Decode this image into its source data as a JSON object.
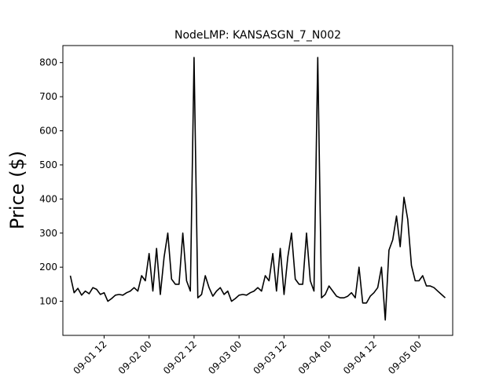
{
  "chart_data": {
    "type": "line",
    "title": "NodeLMP: KANSASGN_7_N002",
    "xlabel": "",
    "ylabel": "Price ($)",
    "xlim": [
      "2019-09-01 01:00",
      "2019-09-05 09:00"
    ],
    "ylim": [
      0,
      850
    ],
    "y_ticks": [
      100,
      200,
      300,
      400,
      500,
      600,
      700,
      800
    ],
    "x_ticks": [
      "2019-09-01 12:00",
      "2019-09-02 00:00",
      "2019-09-02 12:00",
      "2019-09-03 00:00",
      "2019-09-03 12:00",
      "2019-09-04 00:00",
      "2019-09-04 12:00",
      "2019-09-05 00:00"
    ],
    "x_tick_labels": [
      "09-01 12",
      "09-02 00",
      "09-02 12",
      "09-03 00",
      "09-03 12",
      "09-04 00",
      "09-04 12",
      "09-05 00"
    ],
    "grid": false,
    "series": [
      {
        "color": "#000000",
        "x": [
          "2019-09-01 03:00",
          "2019-09-01 04:00",
          "2019-09-01 05:00",
          "2019-09-01 06:00",
          "2019-09-01 07:00",
          "2019-09-01 08:00",
          "2019-09-01 09:00",
          "2019-09-01 10:00",
          "2019-09-01 11:00",
          "2019-09-01 12:00",
          "2019-09-01 13:00",
          "2019-09-01 14:00",
          "2019-09-01 15:00",
          "2019-09-01 16:00",
          "2019-09-01 17:00",
          "2019-09-01 18:00",
          "2019-09-01 19:00",
          "2019-09-01 20:00",
          "2019-09-01 21:00",
          "2019-09-01 22:00",
          "2019-09-01 23:00",
          "2019-09-02 00:00",
          "2019-09-02 01:00",
          "2019-09-02 02:00",
          "2019-09-02 03:00",
          "2019-09-02 04:00",
          "2019-09-02 05:00",
          "2019-09-02 06:00",
          "2019-09-02 07:00",
          "2019-09-02 08:00",
          "2019-09-02 09:00",
          "2019-09-02 10:00",
          "2019-09-02 11:00",
          "2019-09-02 12:00",
          "2019-09-02 13:00",
          "2019-09-02 14:00",
          "2019-09-02 15:00",
          "2019-09-02 16:00",
          "2019-09-02 17:00",
          "2019-09-02 18:00",
          "2019-09-02 19:00",
          "2019-09-02 20:00",
          "2019-09-02 21:00",
          "2019-09-02 22:00",
          "2019-09-02 23:00",
          "2019-09-03 00:00",
          "2019-09-03 01:00",
          "2019-09-03 02:00",
          "2019-09-03 03:00",
          "2019-09-03 04:00",
          "2019-09-03 05:00",
          "2019-09-03 06:00",
          "2019-09-03 07:00",
          "2019-09-03 08:00",
          "2019-09-03 09:00",
          "2019-09-03 10:00",
          "2019-09-03 11:00",
          "2019-09-03 12:00",
          "2019-09-03 13:00",
          "2019-09-03 14:00",
          "2019-09-03 15:00",
          "2019-09-03 16:00",
          "2019-09-03 17:00",
          "2019-09-03 18:00",
          "2019-09-03 19:00",
          "2019-09-03 20:00",
          "2019-09-03 21:00",
          "2019-09-03 22:00",
          "2019-09-03 23:00",
          "2019-09-04 00:00",
          "2019-09-04 01:00",
          "2019-09-04 02:00",
          "2019-09-04 03:00",
          "2019-09-04 04:00",
          "2019-09-04 05:00",
          "2019-09-04 06:00",
          "2019-09-04 07:00",
          "2019-09-04 08:00",
          "2019-09-04 09:00",
          "2019-09-04 10:00",
          "2019-09-04 11:00",
          "2019-09-04 12:00",
          "2019-09-04 13:00",
          "2019-09-04 14:00",
          "2019-09-04 15:00",
          "2019-09-04 16:00",
          "2019-09-04 17:00",
          "2019-09-04 18:00",
          "2019-09-04 19:00",
          "2019-09-04 20:00",
          "2019-09-04 21:00",
          "2019-09-04 22:00",
          "2019-09-04 23:00",
          "2019-09-05 00:00",
          "2019-09-05 01:00",
          "2019-09-05 02:00",
          "2019-09-05 03:00",
          "2019-09-05 04:00",
          "2019-09-05 05:00",
          "2019-09-05 06:00",
          "2019-09-05 07:00"
        ],
        "y": [
          175,
          125,
          138,
          118,
          130,
          122,
          140,
          135,
          120,
          125,
          100,
          108,
          118,
          120,
          118,
          125,
          130,
          140,
          130,
          175,
          160,
          240,
          130,
          255,
          120,
          230,
          300,
          165,
          150,
          150,
          300,
          160,
          130,
          815,
          110,
          120,
          175,
          140,
          115,
          130,
          140,
          120,
          130,
          100,
          108,
          118,
          120,
          118,
          125,
          130,
          140,
          130,
          175,
          160,
          240,
          130,
          255,
          120,
          230,
          300,
          165,
          150,
          150,
          300,
          160,
          130,
          815,
          110,
          120,
          145,
          130,
          115,
          110,
          110,
          115,
          125,
          110,
          200,
          95,
          95,
          115,
          125,
          140,
          200,
          45,
          250,
          280,
          350,
          260,
          405,
          340,
          205,
          160,
          160,
          175,
          145,
          145,
          140,
          130,
          120,
          110
        ]
      }
    ]
  }
}
